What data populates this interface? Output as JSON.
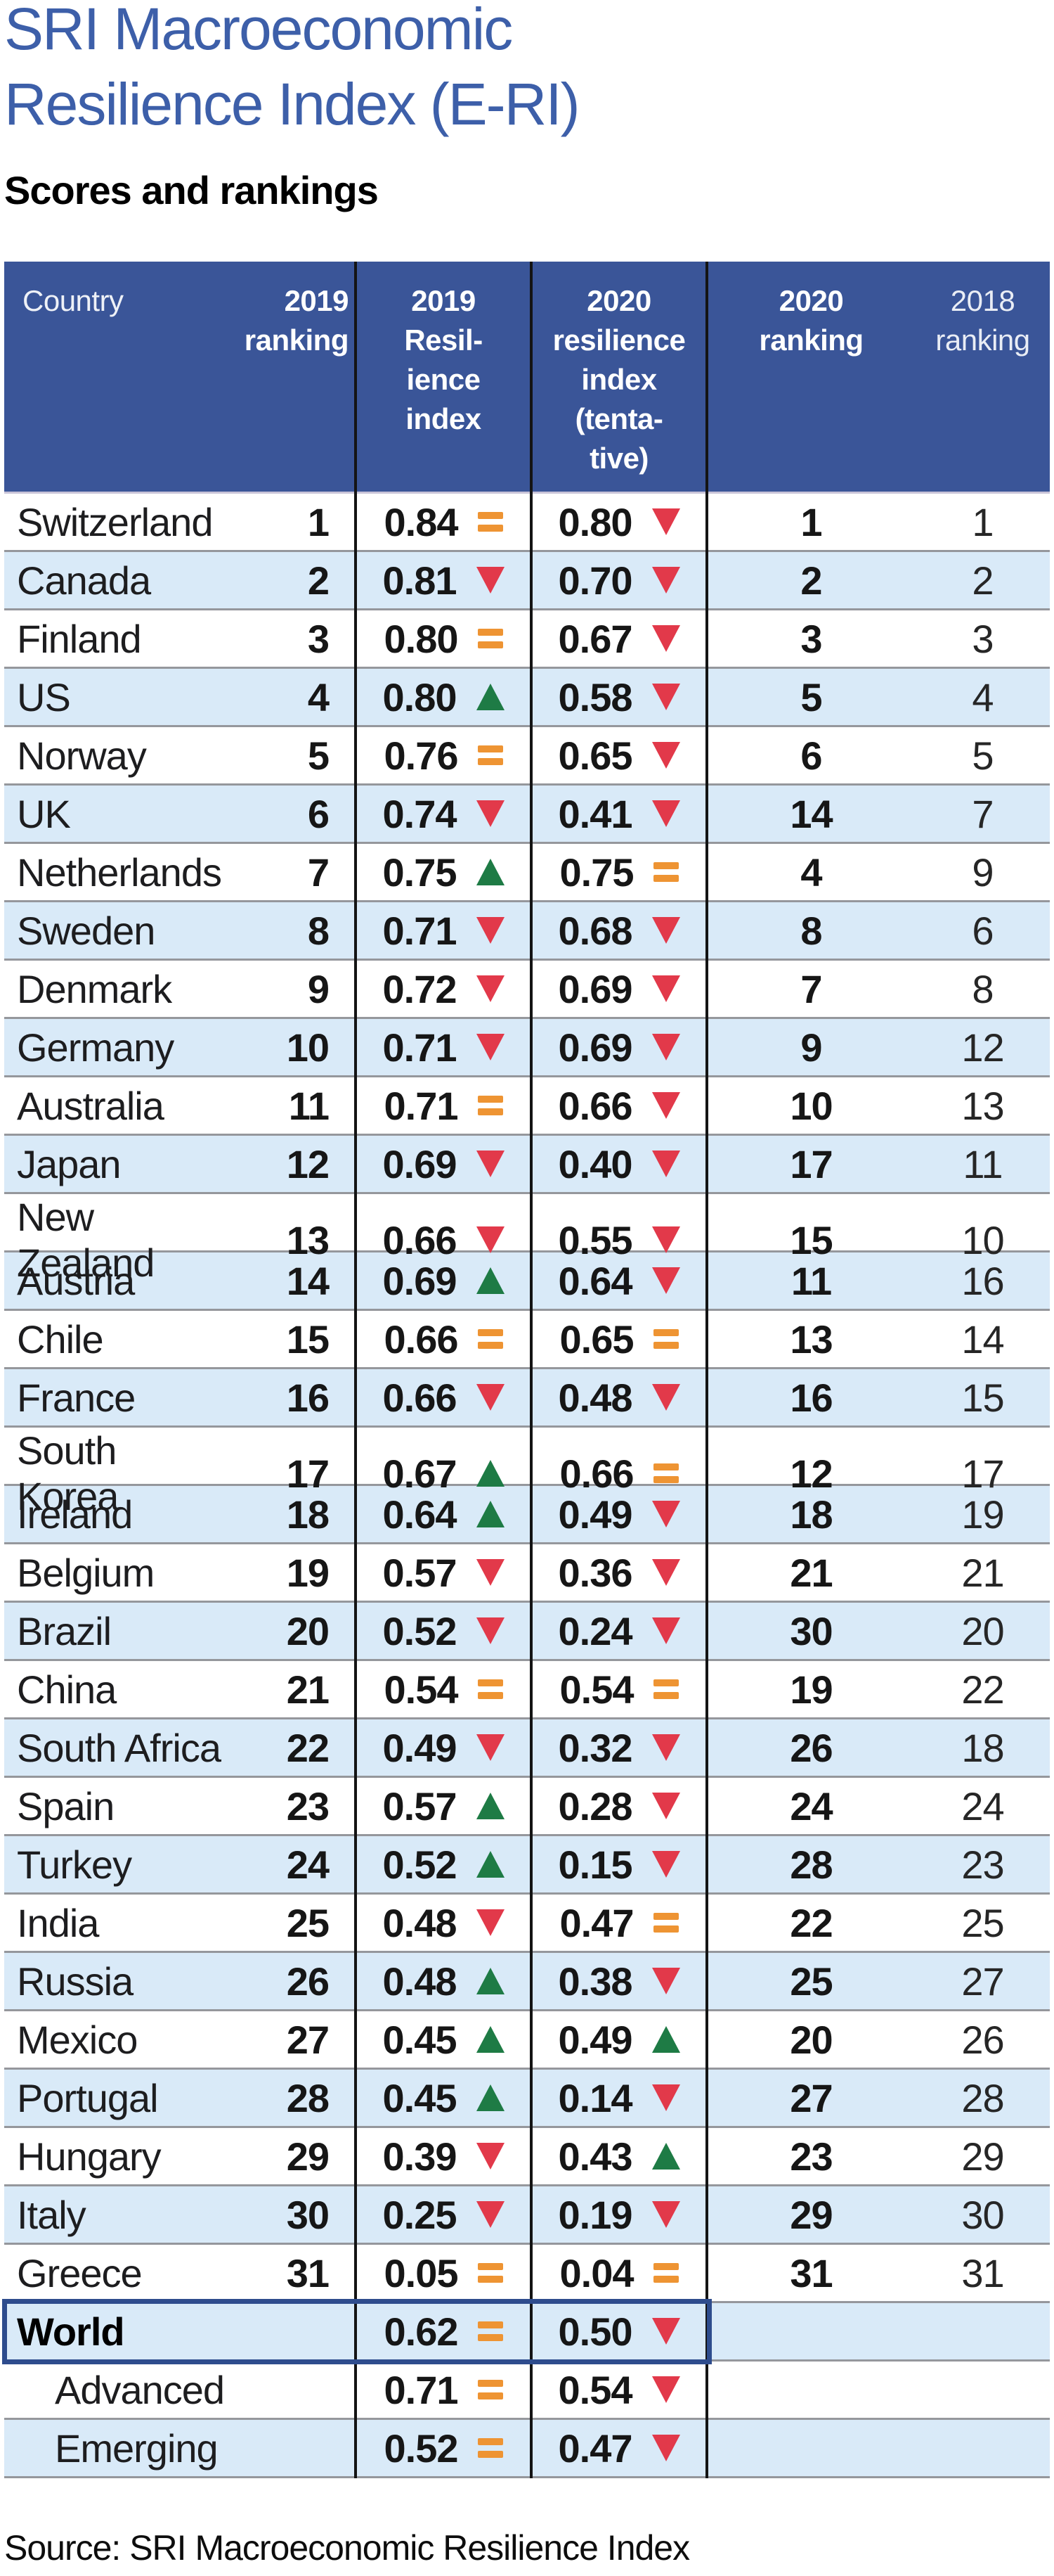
{
  "title": {
    "line1": "SRI Macroeconomic",
    "line2": "Resilience Index (E-RI)"
  },
  "subtitle": "Scores and rankings",
  "source": "Source: SRI Macroeconomic Resilience Index",
  "colors": {
    "header-bg": "#3a5598",
    "title-blue": "#3d5fa9",
    "stripe": "#d9eaf8",
    "red": "#e2394a",
    "green": "#1e7b45",
    "orange": "#ee9433",
    "navy": "#2e4c8d"
  },
  "chart_data": {
    "type": "table",
    "title": "SRI Macroeconomic Resilience Index (E-RI) — Scores and rankings",
    "columns": [
      "Country",
      "2019 ranking",
      "2019 Resilience index",
      "2019 change",
      "2020 resilience index (tentative)",
      "2020 change",
      "2020 ranking",
      "2018 ranking"
    ],
    "header_display": {
      "country": "Country",
      "ranking_2019": "2019\nranking",
      "index_2019": "2019\nResil-\nience\nindex",
      "index_2020": "2020\nresilience\nindex\n(tenta-\ntive)",
      "ranking_2020": "2020\nranking",
      "ranking_2018": "2018\nranking"
    },
    "change_legend": {
      "equal": "orange = (unchanged)",
      "down": "red ▼ (deterioration)",
      "up": "green ▲ (improvement)"
    },
    "rows": [
      {
        "country": "Switzerland",
        "ranking_2019": "1",
        "index_2019": "0.84",
        "change_2019": "equal",
        "index_2020": "0.80",
        "change_2020": "down",
        "ranking_2020": "1",
        "ranking_2018": "1",
        "emphasis": false,
        "indent": false
      },
      {
        "country": "Canada",
        "ranking_2019": "2",
        "index_2019": "0.81",
        "change_2019": "down",
        "index_2020": "0.70",
        "change_2020": "down",
        "ranking_2020": "2",
        "ranking_2018": "2",
        "emphasis": false,
        "indent": false
      },
      {
        "country": "Finland",
        "ranking_2019": "3",
        "index_2019": "0.80",
        "change_2019": "equal",
        "index_2020": "0.67",
        "change_2020": "down",
        "ranking_2020": "3",
        "ranking_2018": "3",
        "emphasis": false,
        "indent": false
      },
      {
        "country": "US",
        "ranking_2019": "4",
        "index_2019": "0.80",
        "change_2019": "up",
        "index_2020": "0.58",
        "change_2020": "down",
        "ranking_2020": "5",
        "ranking_2018": "4",
        "emphasis": false,
        "indent": false
      },
      {
        "country": "Norway",
        "ranking_2019": "5",
        "index_2019": "0.76",
        "change_2019": "equal",
        "index_2020": "0.65",
        "change_2020": "down",
        "ranking_2020": "6",
        "ranking_2018": "5",
        "emphasis": false,
        "indent": false
      },
      {
        "country": "UK",
        "ranking_2019": "6",
        "index_2019": "0.74",
        "change_2019": "down",
        "index_2020": "0.41",
        "change_2020": "down",
        "ranking_2020": "14",
        "ranking_2018": "7",
        "emphasis": false,
        "indent": false
      },
      {
        "country": "Netherlands",
        "ranking_2019": "7",
        "index_2019": "0.75",
        "change_2019": "up",
        "index_2020": "0.75",
        "change_2020": "equal",
        "ranking_2020": "4",
        "ranking_2018": "9",
        "emphasis": false,
        "indent": false
      },
      {
        "country": "Sweden",
        "ranking_2019": "8",
        "index_2019": "0.71",
        "change_2019": "down",
        "index_2020": "0.68",
        "change_2020": "down",
        "ranking_2020": "8",
        "ranking_2018": "6",
        "emphasis": false,
        "indent": false
      },
      {
        "country": "Denmark",
        "ranking_2019": "9",
        "index_2019": "0.72",
        "change_2019": "down",
        "index_2020": "0.69",
        "change_2020": "down",
        "ranking_2020": "7",
        "ranking_2018": "8",
        "emphasis": false,
        "indent": false
      },
      {
        "country": "Germany",
        "ranking_2019": "10",
        "index_2019": "0.71",
        "change_2019": "down",
        "index_2020": "0.69",
        "change_2020": "down",
        "ranking_2020": "9",
        "ranking_2018": "12",
        "emphasis": false,
        "indent": false
      },
      {
        "country": "Australia",
        "ranking_2019": "11",
        "index_2019": "0.71",
        "change_2019": "equal",
        "index_2020": "0.66",
        "change_2020": "down",
        "ranking_2020": "10",
        "ranking_2018": "13",
        "emphasis": false,
        "indent": false
      },
      {
        "country": "Japan",
        "ranking_2019": "12",
        "index_2019": "0.69",
        "change_2019": "down",
        "index_2020": "0.40",
        "change_2020": "down",
        "ranking_2020": "17",
        "ranking_2018": "11",
        "emphasis": false,
        "indent": false
      },
      {
        "country": "New Zealand",
        "ranking_2019": "13",
        "index_2019": "0.66",
        "change_2019": "down",
        "index_2020": "0.55",
        "change_2020": "down",
        "ranking_2020": "15",
        "ranking_2018": "10",
        "emphasis": false,
        "indent": false
      },
      {
        "country": "Austria",
        "ranking_2019": "14",
        "index_2019": "0.69",
        "change_2019": "up",
        "index_2020": "0.64",
        "change_2020": "down",
        "ranking_2020": "11",
        "ranking_2018": "16",
        "emphasis": false,
        "indent": false
      },
      {
        "country": "Chile",
        "ranking_2019": "15",
        "index_2019": "0.66",
        "change_2019": "equal",
        "index_2020": "0.65",
        "change_2020": "equal",
        "ranking_2020": "13",
        "ranking_2018": "14",
        "emphasis": false,
        "indent": false
      },
      {
        "country": "France",
        "ranking_2019": "16",
        "index_2019": "0.66",
        "change_2019": "down",
        "index_2020": "0.48",
        "change_2020": "down",
        "ranking_2020": "16",
        "ranking_2018": "15",
        "emphasis": false,
        "indent": false
      },
      {
        "country": "South Korea",
        "ranking_2019": "17",
        "index_2019": "0.67",
        "change_2019": "up",
        "index_2020": "0.66",
        "change_2020": "equal",
        "ranking_2020": "12",
        "ranking_2018": "17",
        "emphasis": false,
        "indent": false
      },
      {
        "country": "Ireland",
        "ranking_2019": "18",
        "index_2019": "0.64",
        "change_2019": "up",
        "index_2020": "0.49",
        "change_2020": "down",
        "ranking_2020": "18",
        "ranking_2018": "19",
        "emphasis": false,
        "indent": false
      },
      {
        "country": "Belgium",
        "ranking_2019": "19",
        "index_2019": "0.57",
        "change_2019": "down",
        "index_2020": "0.36",
        "change_2020": "down",
        "ranking_2020": "21",
        "ranking_2018": "21",
        "emphasis": false,
        "indent": false
      },
      {
        "country": "Brazil",
        "ranking_2019": "20",
        "index_2019": "0.52",
        "change_2019": "down",
        "index_2020": "0.24",
        "change_2020": "down",
        "ranking_2020": "30",
        "ranking_2018": "20",
        "emphasis": false,
        "indent": false
      },
      {
        "country": "China",
        "ranking_2019": "21",
        "index_2019": "0.54",
        "change_2019": "equal",
        "index_2020": "0.54",
        "change_2020": "equal",
        "ranking_2020": "19",
        "ranking_2018": "22",
        "emphasis": false,
        "indent": false
      },
      {
        "country": "South Africa",
        "ranking_2019": "22",
        "index_2019": "0.49",
        "change_2019": "down",
        "index_2020": "0.32",
        "change_2020": "down",
        "ranking_2020": "26",
        "ranking_2018": "18",
        "emphasis": false,
        "indent": false
      },
      {
        "country": "Spain",
        "ranking_2019": "23",
        "index_2019": "0.57",
        "change_2019": "up",
        "index_2020": "0.28",
        "change_2020": "down",
        "ranking_2020": "24",
        "ranking_2018": "24",
        "emphasis": false,
        "indent": false
      },
      {
        "country": "Turkey",
        "ranking_2019": "24",
        "index_2019": "0.52",
        "change_2019": "up",
        "index_2020": "0.15",
        "change_2020": "down",
        "ranking_2020": "28",
        "ranking_2018": "23",
        "emphasis": false,
        "indent": false
      },
      {
        "country": "India",
        "ranking_2019": "25",
        "index_2019": "0.48",
        "change_2019": "down",
        "index_2020": "0.47",
        "change_2020": "equal",
        "ranking_2020": "22",
        "ranking_2018": "25",
        "emphasis": false,
        "indent": false
      },
      {
        "country": "Russia",
        "ranking_2019": "26",
        "index_2019": "0.48",
        "change_2019": "up",
        "index_2020": "0.38",
        "change_2020": "down",
        "ranking_2020": "25",
        "ranking_2018": "27",
        "emphasis": false,
        "indent": false
      },
      {
        "country": "Mexico",
        "ranking_2019": "27",
        "index_2019": "0.45",
        "change_2019": "up",
        "index_2020": "0.49",
        "change_2020": "up",
        "ranking_2020": "20",
        "ranking_2018": "26",
        "emphasis": false,
        "indent": false
      },
      {
        "country": "Portugal",
        "ranking_2019": "28",
        "index_2019": "0.45",
        "change_2019": "up",
        "index_2020": "0.14",
        "change_2020": "down",
        "ranking_2020": "27",
        "ranking_2018": "28",
        "emphasis": false,
        "indent": false
      },
      {
        "country": "Hungary",
        "ranking_2019": "29",
        "index_2019": "0.39",
        "change_2019": "down",
        "index_2020": "0.43",
        "change_2020": "up",
        "ranking_2020": "23",
        "ranking_2018": "29",
        "emphasis": false,
        "indent": false
      },
      {
        "country": "Italy",
        "ranking_2019": "30",
        "index_2019": "0.25",
        "change_2019": "down",
        "index_2020": "0.19",
        "change_2020": "down",
        "ranking_2020": "29",
        "ranking_2018": "30",
        "emphasis": false,
        "indent": false
      },
      {
        "country": "Greece",
        "ranking_2019": "31",
        "index_2019": "0.05",
        "change_2019": "equal",
        "index_2020": "0.04",
        "change_2020": "equal",
        "ranking_2020": "31",
        "ranking_2018": "31",
        "emphasis": false,
        "indent": false
      },
      {
        "country": "World",
        "ranking_2019": "",
        "index_2019": "0.62",
        "change_2019": "equal",
        "index_2020": "0.50",
        "change_2020": "down",
        "ranking_2020": "",
        "ranking_2018": "",
        "emphasis": true,
        "indent": false
      },
      {
        "country": "Advanced",
        "ranking_2019": "",
        "index_2019": "0.71",
        "change_2019": "equal",
        "index_2020": "0.54",
        "change_2020": "down",
        "ranking_2020": "",
        "ranking_2018": "",
        "emphasis": false,
        "indent": true
      },
      {
        "country": "Emerging",
        "ranking_2019": "",
        "index_2019": "0.52",
        "change_2019": "equal",
        "index_2020": "0.47",
        "change_2020": "down",
        "ranking_2020": "",
        "ranking_2018": "",
        "emphasis": false,
        "indent": true
      }
    ]
  }
}
